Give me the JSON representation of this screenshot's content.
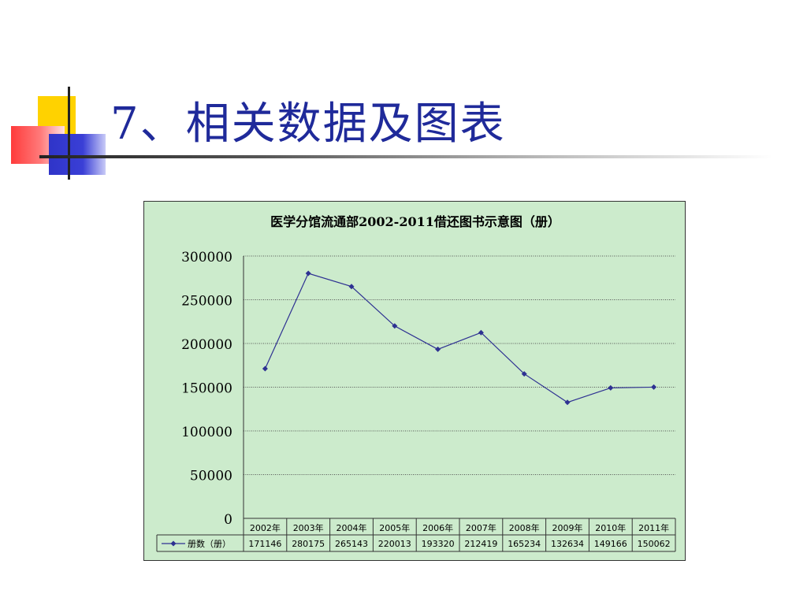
{
  "slide": {
    "title": "7、相关数据及图表"
  },
  "colors": {
    "title": "#1f2a9a",
    "chart_bg": "#ccebcc",
    "series_line": "#2e3192",
    "deco_yellow": "#ffd200",
    "deco_red": "#ff5a5a",
    "deco_blue": "#2f34c8"
  },
  "chart_data": {
    "type": "line",
    "title": "医学分馆流通部2002-2011借还图书示意图（册）",
    "categories": [
      "2002年",
      "2003年",
      "2004年",
      "2005年",
      "2006年",
      "2007年",
      "2008年",
      "2009年",
      "2010年",
      "2011年"
    ],
    "series": [
      {
        "name": "册数（册）",
        "values": [
          171146,
          280175,
          265143,
          220013,
          193320,
          212419,
          165234,
          132634,
          149166,
          150062
        ]
      }
    ],
    "value_labels": [
      "171146",
      "280175",
      "265143",
      "220013",
      "193320",
      "212419",
      "165234",
      "132634",
      "149166",
      "150062"
    ],
    "ylim": [
      0,
      300000
    ],
    "yticks": [
      "0",
      "50000",
      "100000",
      "150000",
      "200000",
      "250000",
      "300000"
    ],
    "grid": true,
    "legend": "data-table-left"
  }
}
